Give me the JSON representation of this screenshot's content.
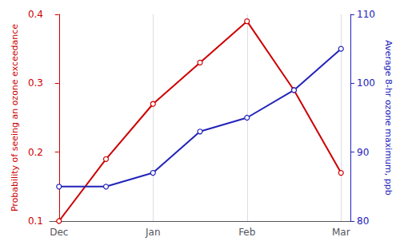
{
  "chart_data": {
    "type": "line",
    "x": [
      0,
      0.5,
      1,
      1.5,
      2,
      2.5,
      3
    ],
    "xlim": [
      -0.1,
      3.1
    ],
    "xticks": [
      {
        "value": 0,
        "label": "Dec"
      },
      {
        "value": 1,
        "label": "Jan"
      },
      {
        "value": 2,
        "label": "Feb"
      },
      {
        "value": 3,
        "label": "Mar"
      }
    ],
    "ylabel": "Probability of seeing an ozone exceedance",
    "y2label": "Average 8-hr ozone maximum, ppb",
    "ylim": [
      0.1,
      0.4
    ],
    "yticks": [
      0.1,
      0.2,
      0.3,
      0.4
    ],
    "y2lim": [
      80,
      110
    ],
    "y2ticks": [
      80,
      90,
      100,
      110
    ],
    "grid": true,
    "marker": "circle",
    "series": [
      {
        "color": "#cc0000",
        "values": [
          0.1,
          0.19,
          0.27,
          0.33,
          0.39,
          0.29,
          0.17
        ]
      },
      {
        "color": "#2222bb",
        "axis": "y2",
        "values": [
          85,
          85,
          87,
          93,
          95,
          99,
          105
        ]
      }
    ]
  }
}
